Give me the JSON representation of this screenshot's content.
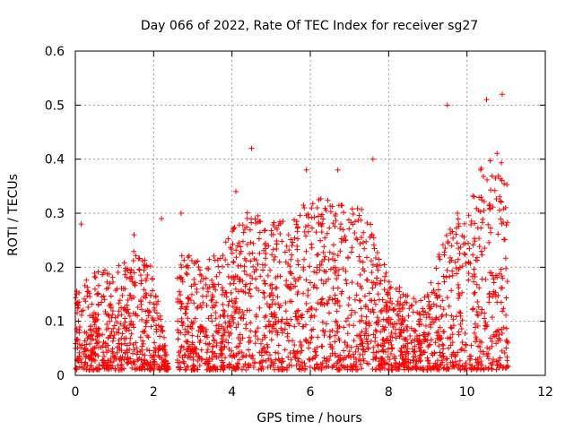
{
  "chart_data": {
    "type": "scatter",
    "title": "Day 066 of 2022, Rate Of TEC Index for receiver sg27",
    "xlabel": "GPS time / hours",
    "ylabel": "ROTI / TECUs",
    "xlim": [
      0,
      12
    ],
    "ylim": [
      0,
      0.6
    ],
    "x_ticks": [
      "0",
      "2",
      "4",
      "6",
      "8",
      "10",
      "12"
    ],
    "y_ticks": [
      "0",
      "0.1",
      "0.2",
      "0.3",
      "0.4",
      "0.5",
      "0.6"
    ],
    "grid": true,
    "marker": "plus",
    "color": "#ff0000",
    "notable_points": [
      {
        "x": 0.15,
        "y": 0.28
      },
      {
        "x": 1.5,
        "y": 0.26
      },
      {
        "x": 2.2,
        "y": 0.29
      },
      {
        "x": 2.7,
        "y": 0.3
      },
      {
        "x": 4.1,
        "y": 0.34
      },
      {
        "x": 4.5,
        "y": 0.42
      },
      {
        "x": 5.9,
        "y": 0.38
      },
      {
        "x": 6.7,
        "y": 0.38
      },
      {
        "x": 7.6,
        "y": 0.4
      },
      {
        "x": 9.5,
        "y": 0.5
      },
      {
        "x": 10.5,
        "y": 0.51
      },
      {
        "x": 10.9,
        "y": 0.52
      }
    ],
    "envelope": [
      {
        "x": 0.0,
        "y": 0.15
      },
      {
        "x": 0.5,
        "y": 0.18
      },
      {
        "x": 1.0,
        "y": 0.19
      },
      {
        "x": 1.5,
        "y": 0.22
      },
      {
        "x": 2.0,
        "y": 0.19
      },
      {
        "x": 2.4,
        "y": 0.0
      },
      {
        "x": 2.6,
        "y": 0.22
      },
      {
        "x": 3.0,
        "y": 0.21
      },
      {
        "x": 3.5,
        "y": 0.21
      },
      {
        "x": 4.0,
        "y": 0.26
      },
      {
        "x": 4.5,
        "y": 0.3
      },
      {
        "x": 5.0,
        "y": 0.28
      },
      {
        "x": 5.5,
        "y": 0.28
      },
      {
        "x": 6.0,
        "y": 0.32
      },
      {
        "x": 6.5,
        "y": 0.32
      },
      {
        "x": 7.0,
        "y": 0.3
      },
      {
        "x": 7.5,
        "y": 0.3
      },
      {
        "x": 8.0,
        "y": 0.17
      },
      {
        "x": 8.5,
        "y": 0.14
      },
      {
        "x": 9.0,
        "y": 0.14
      },
      {
        "x": 9.5,
        "y": 0.28
      },
      {
        "x": 10.0,
        "y": 0.3
      },
      {
        "x": 10.5,
        "y": 0.4
      },
      {
        "x": 11.0,
        "y": 0.42
      }
    ],
    "x_range_of_data": [
      0.0,
      11.05
    ],
    "gap": [
      2.4,
      2.6
    ]
  }
}
